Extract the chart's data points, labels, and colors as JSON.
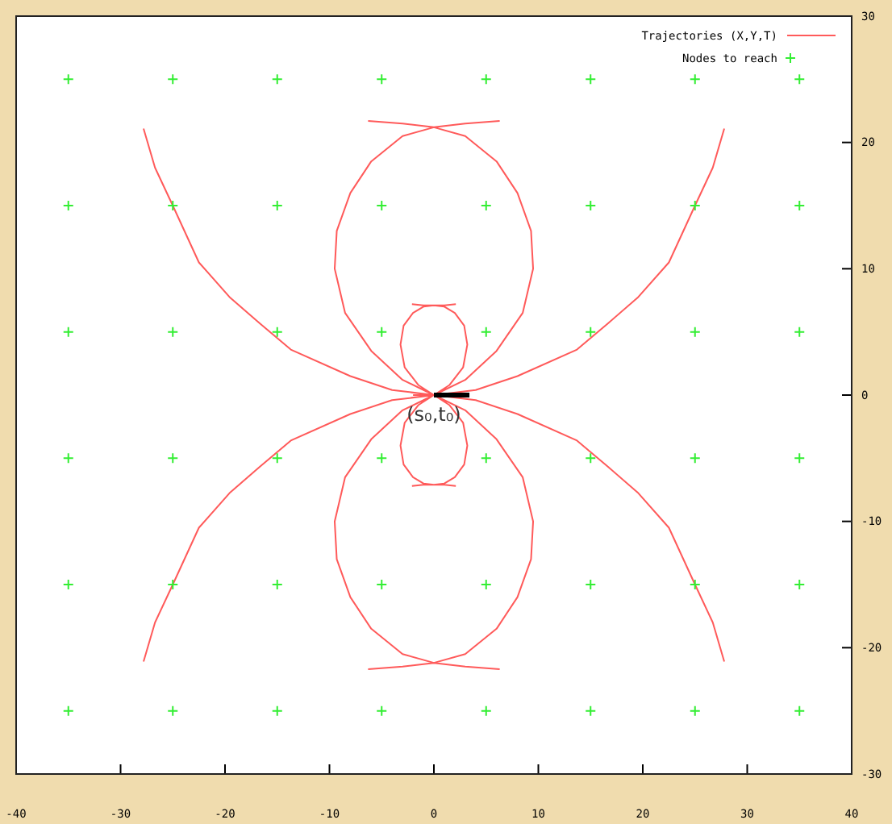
{
  "chart_data": {
    "type": "line",
    "xlim": [
      -40,
      40
    ],
    "xticks": [
      -40,
      -30,
      -20,
      -10,
      0,
      10,
      20,
      30,
      40
    ],
    "ylim": [
      -30,
      30
    ],
    "yticks": [
      -30,
      -20,
      -10,
      0,
      10,
      20,
      30
    ],
    "grid": false,
    "legend": "top right",
    "line_style": "solid",
    "marker": "none",
    "annotations": [
      {
        "text": "(s₀,t₀)",
        "x": 0,
        "y": 0
      }
    ],
    "series": [
      {
        "name": "Trajectories (X,Y,T)",
        "color": "#ff5a5a",
        "x": [
          0,
          -4,
          -8,
          -13.7,
          -16.7,
          -19.5,
          -22.5,
          -25,
          -26.7,
          -27.8,
          null,
          0,
          4,
          8,
          13.7,
          16.7,
          19.5,
          22.5,
          25,
          26.7,
          27.8,
          null,
          0,
          -4,
          -8,
          -13.7,
          -16.7,
          -19.5,
          -22.5,
          -25,
          -26.7,
          -27.8,
          null,
          0,
          4,
          8,
          13.7,
          16.7,
          19.5,
          22.5,
          25,
          26.7,
          27.8,
          null,
          0,
          -3,
          -6,
          -8.5,
          -9.5,
          -9.3,
          -8,
          -6,
          -3,
          0,
          3,
          6.3,
          null,
          0,
          3,
          6,
          8.5,
          9.5,
          9.3,
          8,
          6,
          3,
          0,
          -3,
          -6.3,
          null,
          0,
          -3,
          -6,
          -8.5,
          -9.5,
          -9.3,
          -8,
          -6,
          -3,
          0,
          3,
          6.3,
          null,
          0,
          3,
          6,
          8.5,
          9.5,
          9.3,
          8,
          6,
          3,
          0,
          -3,
          -6.3,
          null,
          0,
          -1.5,
          -2.8,
          -3.2,
          -2.9,
          -2,
          -1,
          0,
          1,
          2.1,
          null,
          0,
          1.5,
          2.8,
          3.2,
          2.9,
          2,
          1,
          0,
          -1,
          -2.1,
          null,
          0,
          -1.5,
          -2.8,
          -3.2,
          -2.9,
          -2,
          -1,
          0,
          1,
          2.1,
          null,
          0,
          1.5,
          2.8,
          3.2,
          2.9,
          2,
          1,
          0,
          -1,
          -2.1,
          null,
          -2,
          0
        ],
        "values": [
          0,
          0.4,
          1.5,
          3.6,
          5.7,
          7.7,
          10.5,
          15,
          18,
          21.1,
          null,
          0,
          0.4,
          1.5,
          3.6,
          5.7,
          7.7,
          10.5,
          15,
          18,
          21.1,
          null,
          0,
          -0.4,
          -1.5,
          -3.6,
          -5.7,
          -7.7,
          -10.5,
          -15,
          -18,
          -21.1,
          null,
          0,
          -0.4,
          -1.5,
          -3.6,
          -5.7,
          -7.7,
          -10.5,
          -15,
          -18,
          -21.1,
          null,
          0,
          1.2,
          3.5,
          6.5,
          10,
          13,
          16,
          18.5,
          20.5,
          21.2,
          21.5,
          21.7,
          null,
          0,
          1.2,
          3.5,
          6.5,
          10,
          13,
          16,
          18.5,
          20.5,
          21.2,
          21.5,
          21.7,
          null,
          0,
          -1.2,
          -3.5,
          -6.5,
          -10,
          -13,
          -16,
          -18.5,
          -20.5,
          -21.2,
          -21.5,
          -21.7,
          null,
          0,
          -1.2,
          -3.5,
          -6.5,
          -10,
          -13,
          -16,
          -18.5,
          -20.5,
          -21.2,
          -21.5,
          -21.7,
          null,
          0,
          0.8,
          2.2,
          4,
          5.5,
          6.5,
          7,
          7.1,
          7.1,
          7.2,
          null,
          0,
          0.8,
          2.2,
          4,
          5.5,
          6.5,
          7,
          7.1,
          7.1,
          7.2,
          null,
          0,
          -0.8,
          -2.2,
          -4,
          -5.5,
          -6.5,
          -7,
          -7.1,
          -7.1,
          -7.2,
          null,
          0,
          -0.8,
          -2.2,
          -4,
          -5.5,
          -6.5,
          -7,
          -7.1,
          -7.1,
          -7.2,
          null,
          0,
          0
        ]
      },
      {
        "type": "scatter",
        "marker": "cross",
        "name": "Nodes to reach",
        "color": "#33ee33",
        "x": [
          -35,
          -25,
          -15,
          -5,
          5,
          15,
          25,
          35,
          -35,
          -25,
          -15,
          -5,
          5,
          15,
          25,
          35,
          -35,
          -25,
          -15,
          -5,
          5,
          15,
          25,
          35,
          -35,
          -25,
          -15,
          -5,
          5,
          15,
          25,
          35,
          -35,
          -25,
          -15,
          -5,
          5,
          15,
          25,
          35,
          -35,
          -25,
          -15,
          -5,
          5,
          15,
          25,
          35
        ],
        "values": [
          25,
          25,
          25,
          25,
          25,
          25,
          25,
          25,
          15,
          15,
          15,
          15,
          15,
          15,
          15,
          15,
          5,
          5,
          5,
          5,
          5,
          5,
          5,
          5,
          -5,
          -5,
          -5,
          -5,
          -5,
          -5,
          -5,
          -5,
          -15,
          -15,
          -15,
          -15,
          -15,
          -15,
          -15,
          -15,
          -25,
          -25,
          -25,
          -25,
          -25,
          -25,
          -25,
          -25
        ]
      },
      {
        "color": "#000000",
        "x": [
          0,
          3.4
        ],
        "values": [
          0,
          0
        ]
      }
    ]
  }
}
